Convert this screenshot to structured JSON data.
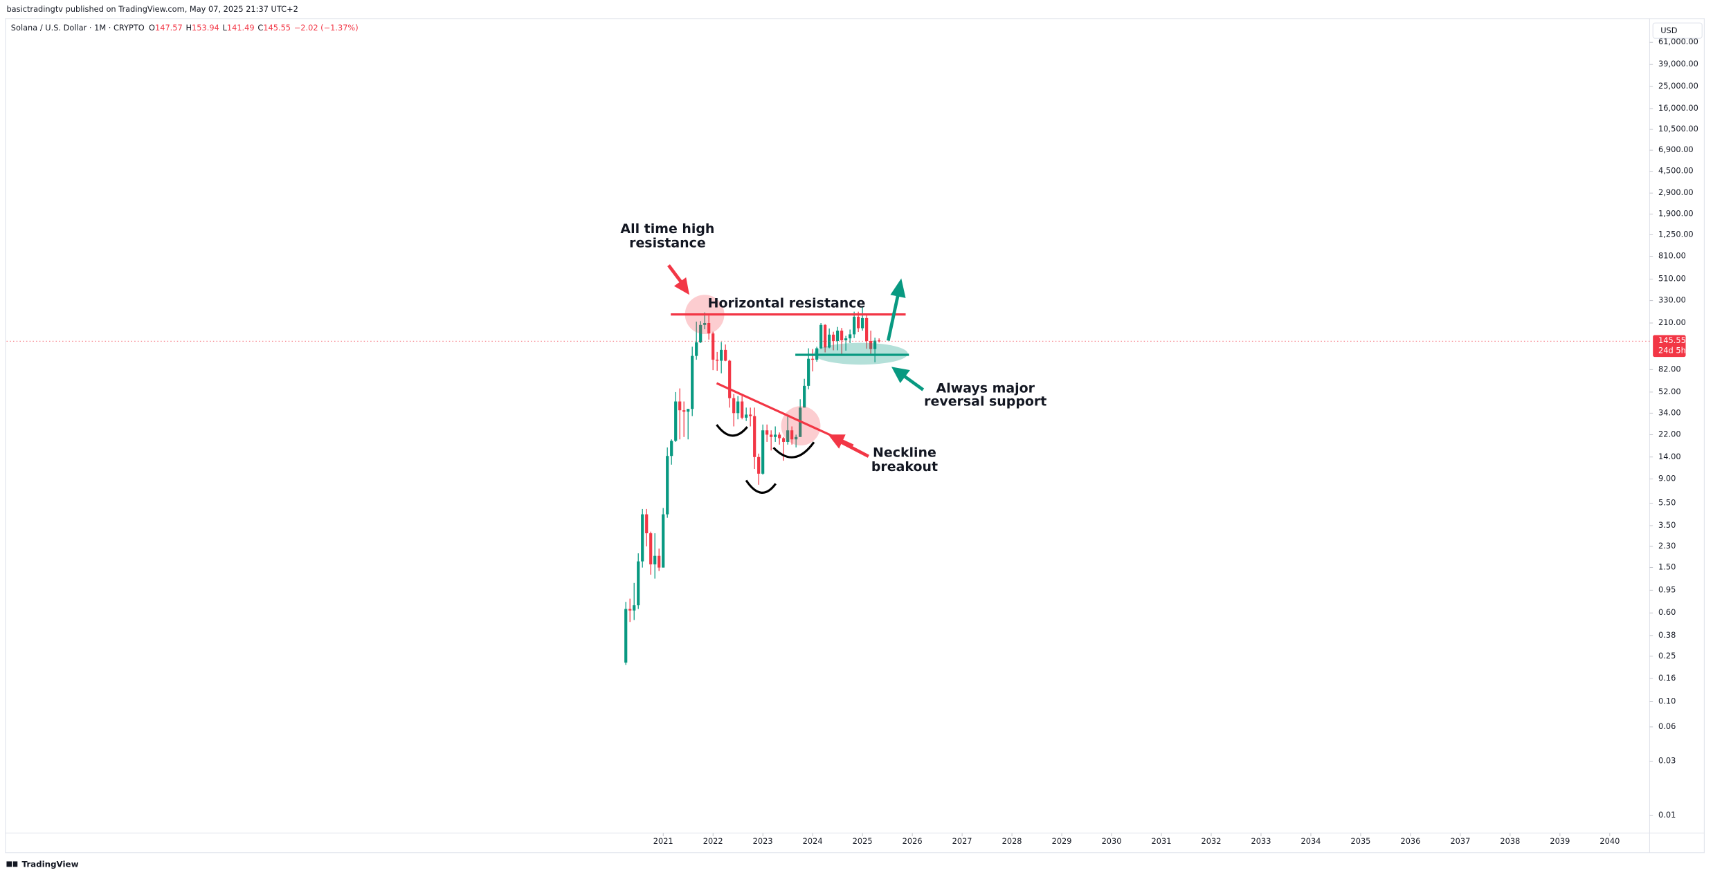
{
  "header": {
    "published": "basictradingtv published on TradingView.com, May 07, 2025 21:37 UTC+2",
    "currency": "USD",
    "countdown": "24d 5h",
    "brand": "TradingView"
  },
  "chart_data": {
    "type": "candlestick",
    "title": "Solana / U.S. Dollar · 1M · CRYPTO",
    "legend_labels": [
      "O",
      "H",
      "L",
      "C"
    ],
    "change": "−2.02 (−1.37%)",
    "log": true,
    "grid": false,
    "up_color": "#089981",
    "down_color": "#f23645",
    "xlim": [
      2007.82,
      2040.8
    ],
    "xticks": [
      2021,
      2022,
      2023,
      2024,
      2025,
      2026,
      2027,
      2028,
      2029,
      2030,
      2031,
      2032,
      2033,
      2034,
      2035,
      2036,
      2037,
      2038,
      2039,
      2040
    ],
    "ylim": [
      0.00703,
      96400
    ],
    "yticks": [
      0.01,
      0.03,
      0.06,
      {
        "value": 0.1,
        "label": "0.10"
      },
      0.16,
      0.25,
      0.38,
      {
        "value": 0.6,
        "label": "0.60"
      },
      0.95,
      {
        "value": 1.5,
        "label": "1.50"
      },
      {
        "value": 2.3,
        "label": "2.30"
      },
      {
        "value": 3.5,
        "label": "3.50"
      },
      {
        "value": 5.5,
        "label": "5.50"
      },
      {
        "value": 9,
        "label": "9.00"
      },
      {
        "value": 14,
        "label": "14.00"
      },
      {
        "value": 22,
        "label": "22.00"
      },
      {
        "value": 34,
        "label": "34.00"
      },
      {
        "value": 52,
        "label": "52.00"
      },
      {
        "value": 82,
        "label": "82.00"
      },
      {
        "value": 210,
        "label": "210.00"
      },
      {
        "value": 330,
        "label": "330.00"
      },
      {
        "value": 510,
        "label": "510.00"
      },
      {
        "value": 810,
        "label": "810.00"
      },
      {
        "value": 1250,
        "label": "1,250.00"
      },
      {
        "value": 1900,
        "label": "1,900.00"
      },
      {
        "value": 2900,
        "label": "2,900.00"
      },
      {
        "value": 4500,
        "label": "4,500.00"
      },
      {
        "value": 6900,
        "label": "6,900.00"
      },
      {
        "value": 10500,
        "label": "10,500.00"
      },
      {
        "value": 16000,
        "label": "16,000.00"
      },
      {
        "value": 25000,
        "label": "25,000.00"
      },
      {
        "value": 39000,
        "label": "39,000.00"
      },
      {
        "value": 61000,
        "label": "61,000.00"
      }
    ],
    "candles": [
      {
        "x": "2020-04",
        "open": 0.22,
        "high": 0.75,
        "low": 0.21,
        "close": 0.65
      },
      {
        "x": "2020-05",
        "open": 0.65,
        "high": 0.8,
        "low": 0.5,
        "close": 0.63
      },
      {
        "x": "2020-06",
        "open": 0.63,
        "high": 1.1,
        "low": 0.52,
        "close": 0.7
      },
      {
        "x": "2020-07",
        "open": 0.7,
        "high": 2.0,
        "low": 0.65,
        "close": 1.7
      },
      {
        "x": "2020-08",
        "open": 1.7,
        "high": 4.9,
        "low": 1.5,
        "close": 4.4
      },
      {
        "x": "2020-09",
        "open": 4.4,
        "high": 4.9,
        "low": 2.3,
        "close": 3.0
      },
      {
        "x": "2020-10",
        "open": 3.0,
        "high": 3.1,
        "low": 1.3,
        "close": 1.6
      },
      {
        "x": "2020-11",
        "open": 1.6,
        "high": 3.0,
        "low": 1.2,
        "close": 1.9
      },
      {
        "x": "2020-12",
        "open": 1.9,
        "high": 2.2,
        "low": 1.4,
        "close": 1.5
      },
      {
        "x": "2021-01",
        "open": 1.5,
        "high": 5.0,
        "low": 1.5,
        "close": 4.4
      },
      {
        "x": "2021-02",
        "open": 4.4,
        "high": 17,
        "low": 4.1,
        "close": 14.3
      },
      {
        "x": "2021-03",
        "open": 14.3,
        "high": 20,
        "low": 12,
        "close": 19.4
      },
      {
        "x": "2021-04",
        "open": 19.4,
        "high": 52,
        "low": 19,
        "close": 43
      },
      {
        "x": "2021-05",
        "open": 43,
        "high": 56,
        "low": 20,
        "close": 36
      },
      {
        "x": "2021-06",
        "open": 36,
        "high": 43,
        "low": 21,
        "close": 35
      },
      {
        "x": "2021-07",
        "open": 35,
        "high": 37,
        "low": 20,
        "close": 37
      },
      {
        "x": "2021-08",
        "open": 37,
        "high": 130,
        "low": 32,
        "close": 108
      },
      {
        "x": "2021-09",
        "open": 108,
        "high": 216,
        "low": 100,
        "close": 142
      },
      {
        "x": "2021-10",
        "open": 142,
        "high": 218,
        "low": 140,
        "close": 202
      },
      {
        "x": "2021-11",
        "open": 202,
        "high": 260,
        "low": 185,
        "close": 210
      },
      {
        "x": "2021-12",
        "open": 210,
        "high": 244,
        "low": 150,
        "close": 170
      },
      {
        "x": "2022-01",
        "open": 170,
        "high": 176,
        "low": 81,
        "close": 100
      },
      {
        "x": "2022-02",
        "open": 100,
        "high": 117,
        "low": 80,
        "close": 98
      },
      {
        "x": "2022-03",
        "open": 98,
        "high": 143,
        "low": 76,
        "close": 122
      },
      {
        "x": "2022-04",
        "open": 122,
        "high": 136,
        "low": 97,
        "close": 98
      },
      {
        "x": "2022-05",
        "open": 98,
        "high": 100,
        "low": 38,
        "close": 46
      },
      {
        "x": "2022-06",
        "open": 46,
        "high": 50,
        "low": 26,
        "close": 34
      },
      {
        "x": "2022-07",
        "open": 34,
        "high": 48,
        "low": 30,
        "close": 43
      },
      {
        "x": "2022-08",
        "open": 43,
        "high": 48,
        "low": 30,
        "close": 31
      },
      {
        "x": "2022-09",
        "open": 31,
        "high": 38,
        "low": 29,
        "close": 33
      },
      {
        "x": "2022-10",
        "open": 33,
        "high": 38,
        "low": 26,
        "close": 32
      },
      {
        "x": "2022-11",
        "open": 32,
        "high": 38,
        "low": 11,
        "close": 14
      },
      {
        "x": "2022-12",
        "open": 14,
        "high": 15,
        "low": 8,
        "close": 10
      },
      {
        "x": "2023-01",
        "open": 10,
        "high": 27,
        "low": 9.8,
        "close": 24
      },
      {
        "x": "2023-02",
        "open": 24,
        "high": 27,
        "low": 19,
        "close": 22
      },
      {
        "x": "2023-03",
        "open": 22,
        "high": 24,
        "low": 16,
        "close": 21
      },
      {
        "x": "2023-04",
        "open": 21,
        "high": 26,
        "low": 19,
        "close": 22
      },
      {
        "x": "2023-05",
        "open": 22,
        "high": 23,
        "low": 18,
        "close": 20.5
      },
      {
        "x": "2023-06",
        "open": 20.5,
        "high": 21,
        "low": 13,
        "close": 19
      },
      {
        "x": "2023-07",
        "open": 19,
        "high": 32,
        "low": 18,
        "close": 24
      },
      {
        "x": "2023-08",
        "open": 24,
        "high": 26,
        "low": 18,
        "close": 20
      },
      {
        "x": "2023-09",
        "open": 20,
        "high": 22,
        "low": 17,
        "close": 21
      },
      {
        "x": "2023-10",
        "open": 21,
        "high": 45,
        "low": 21,
        "close": 38
      },
      {
        "x": "2023-11",
        "open": 38,
        "high": 68,
        "low": 38,
        "close": 59
      },
      {
        "x": "2023-12",
        "open": 59,
        "high": 126,
        "low": 55,
        "close": 102
      },
      {
        "x": "2024-01",
        "open": 102,
        "high": 124,
        "low": 79,
        "close": 100
      },
      {
        "x": "2024-02",
        "open": 100,
        "high": 130,
        "low": 96,
        "close": 126
      },
      {
        "x": "2024-03",
        "open": 126,
        "high": 210,
        "low": 124,
        "close": 202
      },
      {
        "x": "2024-04",
        "open": 202,
        "high": 205,
        "low": 116,
        "close": 128
      },
      {
        "x": "2024-05",
        "open": 128,
        "high": 188,
        "low": 126,
        "close": 166
      },
      {
        "x": "2024-06",
        "open": 166,
        "high": 176,
        "low": 121,
        "close": 146
      },
      {
        "x": "2024-07",
        "open": 146,
        "high": 194,
        "low": 121,
        "close": 180
      },
      {
        "x": "2024-08",
        "open": 180,
        "high": 190,
        "low": 110,
        "close": 148
      },
      {
        "x": "2024-09",
        "open": 148,
        "high": 162,
        "low": 120,
        "close": 154
      },
      {
        "x": "2024-10",
        "open": 154,
        "high": 184,
        "low": 140,
        "close": 167
      },
      {
        "x": "2024-11",
        "open": 167,
        "high": 264,
        "low": 155,
        "close": 238
      },
      {
        "x": "2024-12",
        "open": 238,
        "high": 264,
        "low": 175,
        "close": 189
      },
      {
        "x": "2025-01",
        "open": 189,
        "high": 295,
        "low": 180,
        "close": 232
      },
      {
        "x": "2025-02",
        "open": 232,
        "high": 245,
        "low": 125,
        "close": 146
      },
      {
        "x": "2025-03",
        "open": 146,
        "high": 180,
        "low": 112,
        "close": 124
      },
      {
        "x": "2025-04",
        "open": 124,
        "high": 156,
        "low": 95,
        "close": 147
      },
      {
        "x": "2025-05",
        "open": 147.57,
        "high": 153.94,
        "low": 141.49,
        "close": 145.55
      }
    ],
    "annotations": {
      "ath": [
        "All time high",
        "resistance"
      ],
      "horizontal": "Horizontal resistance",
      "support": [
        "Always major",
        "reversal support"
      ],
      "neckline": [
        "Neckline",
        "breakout"
      ]
    }
  }
}
